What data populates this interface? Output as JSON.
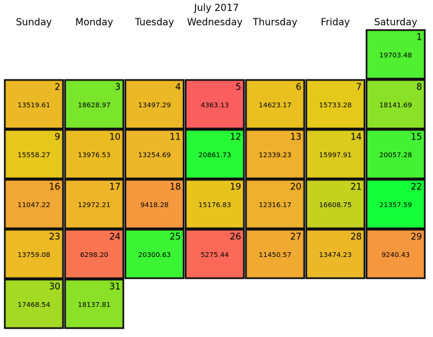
{
  "chart_data": {
    "type": "calendar_heatmap",
    "title": "July 2017",
    "weekdays": [
      "Sunday",
      "Monday",
      "Tuesday",
      "Wednesday",
      "Thursday",
      "Friday",
      "Saturday"
    ],
    "days": [
      1,
      2,
      3,
      4,
      5,
      6,
      7,
      8,
      9,
      10,
      11,
      12,
      13,
      14,
      15,
      16,
      17,
      18,
      19,
      20,
      21,
      22,
      23,
      24,
      25,
      26,
      27,
      28,
      29,
      30,
      31
    ],
    "values": [
      19703.48,
      13519.61,
      18628.97,
      13497.29,
      4363.13,
      14623.17,
      15733.28,
      18141.69,
      15558.27,
      13976.53,
      13254.69,
      20861.73,
      12339.23,
      15997.91,
      20057.28,
      11047.22,
      12972.21,
      9418.28,
      15176.83,
      12316.17,
      16608.75,
      21357.59,
      13759.08,
      6298.2,
      20300.63,
      5275.44,
      11450.57,
      13474.23,
      9240.43,
      17468.54,
      18137.81
    ],
    "value_labels": [
      "19703.48",
      "13519.61",
      "18628.97",
      "13497.29",
      "4363.13",
      "14623.17",
      "15733.28",
      "18141.69",
      "15558.27",
      "13976.53",
      "13254.69",
      "20861.73",
      "12339.23",
      "15997.91",
      "20057.28",
      "11047.22",
      "12972.21",
      "9418.28",
      "15176.83",
      "12316.17",
      "16608.75",
      "21357.59",
      "13759.08",
      "6298.20",
      "20300.63",
      "5275.44",
      "11450.57",
      "13474.23",
      "9240.43",
      "17468.54",
      "18137.81"
    ],
    "color_scale": [
      "#fb5e5e",
      "#f4a03a",
      "#e6c81a",
      "#14ff3a"
    ]
  }
}
